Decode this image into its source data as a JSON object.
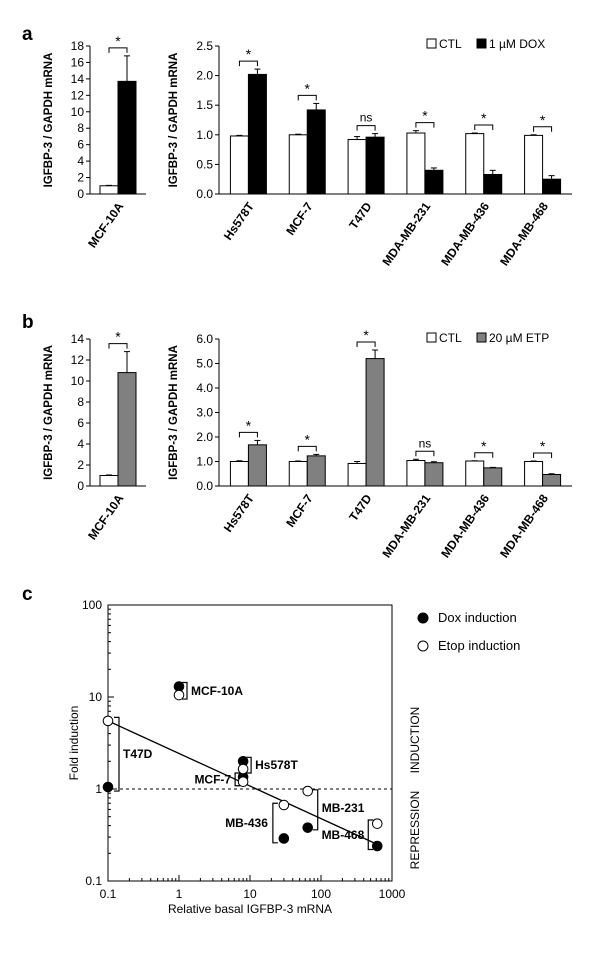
{
  "colors": {
    "ctl": "#ffffff",
    "dox": "#000000",
    "etp": "#808080",
    "axis": "#000000"
  },
  "chart_data": [
    {
      "panel": "a",
      "type": "bar",
      "part": "left",
      "ylabel": "IGFBP-3 / GAPDH mRNA",
      "ylim": [
        0,
        18
      ],
      "yticks": [
        0,
        2,
        4,
        6,
        8,
        10,
        12,
        14,
        16,
        18
      ],
      "categories": [
        "MCF-10A"
      ],
      "series": [
        {
          "name": "CTL",
          "values": [
            1.0
          ],
          "errors": [
            0.05
          ]
        },
        {
          "name": "1 µM DOX",
          "values": [
            13.7
          ],
          "errors": [
            3.1
          ]
        }
      ],
      "significance": [
        "*"
      ]
    },
    {
      "panel": "a",
      "type": "bar",
      "part": "right",
      "ylabel": "IGFBP-3 / GAPDH mRNA",
      "ylim": [
        0,
        2.5
      ],
      "yticks": [
        "0.0",
        "0.5",
        "1.0",
        "1.5",
        "2.0",
        "2.5"
      ],
      "categories": [
        "Hs578T",
        "MCF-7",
        "T47D",
        "MDA-MB-231",
        "MDA-MB-436",
        "MDA-MB-468"
      ],
      "series": [
        {
          "name": "CTL",
          "values": [
            0.98,
            1.0,
            0.92,
            1.03,
            1.02,
            0.99
          ],
          "errors": [
            0.01,
            0.01,
            0.05,
            0.04,
            0.01,
            0.01
          ]
        },
        {
          "name": "1 µM DOX",
          "values": [
            2.02,
            1.42,
            0.96,
            0.4,
            0.33,
            0.25
          ],
          "errors": [
            0.09,
            0.11,
            0.06,
            0.04,
            0.07,
            0.06
          ]
        }
      ],
      "significance": [
        "*",
        "*",
        "ns",
        "*",
        "*",
        "*"
      ],
      "legend": [
        "CTL",
        "1 µM DOX"
      ],
      "legend_position": "top-right"
    },
    {
      "panel": "b",
      "type": "bar",
      "part": "left",
      "ylabel": "IGFBP-3 / GAPDH mRNA",
      "ylim": [
        0,
        14
      ],
      "yticks": [
        0,
        2,
        4,
        6,
        8,
        10,
        12,
        14
      ],
      "categories": [
        "MCF-10A"
      ],
      "series": [
        {
          "name": "CTL",
          "values": [
            1.0
          ],
          "errors": [
            0.05
          ]
        },
        {
          "name": "20 µM ETP",
          "values": [
            10.8
          ],
          "errors": [
            2.0
          ]
        }
      ],
      "significance": [
        "*"
      ]
    },
    {
      "panel": "b",
      "type": "bar",
      "part": "right",
      "ylabel": "IGFBP-3 / GAPDH mRNA",
      "ylim": [
        0,
        6
      ],
      "yticks": [
        "0.0",
        "1.0",
        "2.0",
        "3.0",
        "4.0",
        "5.0",
        "6.0"
      ],
      "categories": [
        "Hs578T",
        "MCF-7",
        "T47D",
        "MDA-MB-231",
        "MDA-MB-436",
        "MDA-MB-468"
      ],
      "series": [
        {
          "name": "CTL",
          "values": [
            1.0,
            1.0,
            0.92,
            1.04,
            1.02,
            1.0
          ],
          "errors": [
            0.03,
            0.02,
            0.08,
            0.05,
            0.01,
            0.02
          ]
        },
        {
          "name": "20 µM ETP",
          "values": [
            1.68,
            1.23,
            5.2,
            0.95,
            0.74,
            0.47
          ],
          "errors": [
            0.18,
            0.06,
            0.35,
            0.04,
            0.02,
            0.03
          ]
        }
      ],
      "significance": [
        "*",
        "*",
        "*",
        "ns",
        "*",
        "*"
      ],
      "legend": [
        "CTL",
        "20 µM ETP"
      ],
      "legend_position": "top-right"
    },
    {
      "panel": "c",
      "type": "scatter",
      "xlabel": "Relative basal IGFBP-3 mRNA",
      "ylabel": "Fold induction",
      "xscale": "log",
      "yscale": "log",
      "xlim": [
        0.1,
        1000
      ],
      "ylim": [
        0.1,
        100
      ],
      "xticks": [
        "0.1",
        "1",
        "10",
        "100",
        "1000"
      ],
      "yticks": [
        "0.1",
        "1",
        "10",
        "100"
      ],
      "series": [
        {
          "name": "Dox induction",
          "fill": "filled",
          "points": [
            {
              "x": 0.1,
              "y": 1.05
            },
            {
              "x": 1.0,
              "y": 13.0
            },
            {
              "x": 8.0,
              "y": 2.0
            },
            {
              "x": 8.0,
              "y": 1.35
            },
            {
              "x": 30,
              "y": 0.29
            },
            {
              "x": 65,
              "y": 0.38
            },
            {
              "x": 620,
              "y": 0.24
            }
          ]
        },
        {
          "name": "Etop induction",
          "fill": "open",
          "points": [
            {
              "x": 0.1,
              "y": 5.5
            },
            {
              "x": 1.0,
              "y": 10.5
            },
            {
              "x": 8.0,
              "y": 1.65
            },
            {
              "x": 8.0,
              "y": 1.2
            },
            {
              "x": 30,
              "y": 0.67
            },
            {
              "x": 65,
              "y": 0.95
            },
            {
              "x": 620,
              "y": 0.42
            }
          ]
        }
      ],
      "trendline": {
        "from": {
          "x": 0.1,
          "y": 5.5
        },
        "to": {
          "x": 620,
          "y": 0.25
        }
      },
      "reference_line": {
        "y": 1,
        "style": "dashed"
      },
      "group_labels": [
        "MCF-10A",
        "Hs578T",
        "MCF-7",
        "T47D",
        "MB-231",
        "MB-436",
        "MB-468"
      ],
      "side_labels": [
        "INDUCTION",
        "REPRESSION"
      ],
      "legend_position": "right"
    }
  ]
}
